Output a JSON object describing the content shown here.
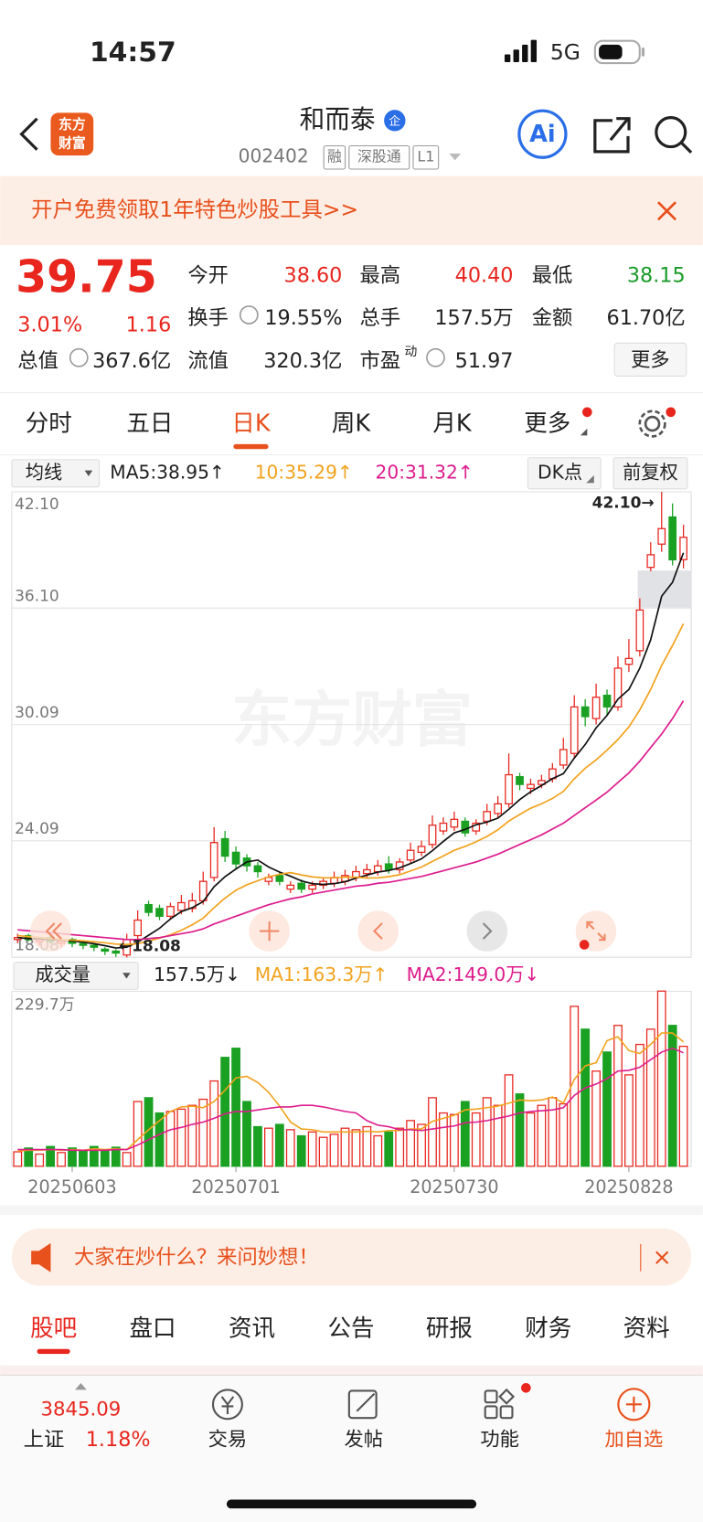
{
  "status": {
    "time": "14:57",
    "network": "5G"
  },
  "header": {
    "logo": [
      "东方",
      "财富"
    ],
    "name": "和而泰",
    "badge": "企",
    "code": "002402",
    "tags": [
      "融",
      "深股通",
      "L1"
    ],
    "ai": "Ai"
  },
  "banner": {
    "text": "开户免费领取1年特色炒股工具>>"
  },
  "quote": {
    "price": "39.75",
    "change_pct": "3.01%",
    "change": "1.16",
    "fields": [
      {
        "label": "今开",
        "value": "38.60"
      },
      {
        "label": "最高",
        "value": "40.40"
      },
      {
        "label": "最低",
        "value": "38.15"
      },
      {
        "label": "换手",
        "value": "19.55%"
      },
      {
        "label": "总手",
        "value": "157.5万"
      },
      {
        "label": "金额",
        "value": "61.70亿"
      },
      {
        "label": "总值",
        "value": "367.6亿"
      },
      {
        "label": "流值",
        "value": "320.3亿"
      },
      {
        "label": "市盈",
        "value": "51.97",
        "sup": "动"
      }
    ],
    "more": "更多"
  },
  "tabs": {
    "items": [
      "分时",
      "五日",
      "日K",
      "周K",
      "月K",
      "更多"
    ],
    "active": 2
  },
  "indicators": {
    "selector": "均线",
    "ma5": "MA5:38.95↑",
    "ma10": "10:35.29↑",
    "ma20": "20:31.32↑",
    "dk": "DK点",
    "adjust": "前复权"
  },
  "chart_data": [
    {
      "type": "candlestick",
      "watermark": "东方财富",
      "high_label": "42.10→",
      "low_label": "←18.08",
      "ylim": [
        18.08,
        42.1
      ],
      "yticks": [
        {
          "value": 42.1,
          "label": "42.10"
        },
        {
          "value": 36.1,
          "label": "36.10"
        },
        30.09,
        24.09,
        18.08
      ],
      "grid": true,
      "open": [
        19.0,
        19.2,
        18.9,
        19.1,
        18.8,
        19.0,
        18.8,
        18.7,
        18.5,
        18.4,
        18.2,
        19.2,
        20.8,
        20.6,
        20.2,
        20.5,
        20.6,
        21.0,
        22.2,
        24.2,
        23.5,
        23.2,
        22.8,
        22.0,
        22.3,
        21.6,
        21.9,
        21.6,
        21.8,
        21.9,
        22.0,
        22.2,
        22.4,
        22.5,
        22.9,
        22.6,
        23.1,
        23.5,
        23.9,
        24.6,
        24.8,
        25.1,
        24.6,
        25.1,
        25.5,
        26.0,
        27.4,
        26.8,
        27.0,
        27.3,
        28.0,
        28.6,
        31.0,
        30.4,
        31.6,
        31.0,
        33.2,
        33.9,
        38.2,
        39.4,
        40.8,
        38.6
      ],
      "high": [
        19.3,
        19.3,
        19.1,
        19.2,
        19.0,
        19.1,
        18.9,
        18.8,
        18.6,
        18.5,
        19.3,
        20.5,
        21.0,
        20.8,
        20.9,
        21.3,
        21.4,
        22.5,
        24.8,
        24.6,
        23.8,
        23.4,
        23.0,
        22.4,
        22.5,
        22.0,
        22.1,
        22.0,
        22.2,
        22.5,
        22.6,
        22.8,
        22.9,
        23.1,
        23.3,
        23.2,
        24.0,
        24.1,
        25.4,
        25.3,
        25.6,
        25.3,
        25.2,
        26.0,
        26.4,
        28.6,
        27.6,
        27.3,
        27.5,
        28.1,
        29.4,
        31.6,
        31.4,
        32.2,
        31.9,
        33.6,
        34.5,
        36.6,
        39.5,
        42.1,
        41.5,
        40.4
      ],
      "low": [
        18.8,
        18.9,
        18.7,
        18.8,
        18.6,
        18.6,
        18.5,
        18.4,
        18.2,
        18.1,
        18.08,
        19.0,
        20.2,
        20.0,
        20.0,
        20.3,
        20.4,
        20.8,
        22.0,
        23.0,
        22.6,
        22.5,
        22.2,
        21.8,
        21.8,
        21.4,
        21.4,
        21.4,
        21.6,
        21.7,
        21.8,
        22.0,
        22.2,
        22.3,
        22.4,
        22.4,
        22.9,
        23.3,
        23.7,
        24.4,
        24.6,
        24.3,
        24.4,
        24.9,
        25.3,
        25.8,
        26.7,
        26.5,
        26.8,
        27.1,
        27.8,
        28.4,
        30.0,
        30.1,
        30.6,
        30.8,
        32.8,
        33.6,
        38.0,
        39.0,
        38.3,
        38.15
      ],
      "close": [
        19.1,
        19.0,
        19.0,
        18.9,
        18.9,
        18.8,
        18.7,
        18.6,
        18.4,
        18.3,
        19.0,
        20.0,
        20.4,
        20.2,
        20.7,
        20.9,
        21.0,
        22.0,
        24.0,
        23.3,
        22.9,
        22.8,
        22.5,
        22.2,
        22.0,
        21.8,
        21.6,
        21.8,
        22.0,
        22.2,
        22.3,
        22.5,
        22.6,
        22.8,
        22.6,
        23.0,
        23.6,
        23.8,
        24.9,
        25.0,
        25.2,
        24.5,
        25.0,
        25.6,
        26.0,
        27.5,
        27.0,
        27.0,
        27.2,
        27.8,
        28.8,
        31.0,
        30.5,
        31.5,
        31.0,
        33.0,
        33.5,
        36.0,
        38.85,
        40.2,
        38.59,
        39.75
      ],
      "lines": [
        {
          "color": "#111111",
          "values": [
            19.1,
            19.05,
            19.03,
            19.0,
            18.98,
            18.92,
            18.86,
            18.78,
            18.68,
            18.56,
            18.6,
            18.86,
            19.22,
            19.58,
            20.06,
            20.44,
            20.64,
            20.96,
            21.72,
            22.24,
            22.64,
            23.0,
            23.1,
            22.74,
            22.48,
            22.26,
            22.02,
            21.88,
            21.84,
            21.88,
            21.98,
            22.16,
            22.32,
            22.48,
            22.56,
            22.7,
            22.92,
            23.16,
            23.58,
            24.06,
            24.5,
            24.68,
            24.92,
            25.06,
            25.26,
            25.72,
            26.22,
            26.62,
            26.94,
            27.3,
            27.56,
            28.36,
            29.06,
            29.92,
            30.56,
            31.4,
            31.9,
            33.0,
            34.47,
            36.71,
            37.43,
            38.95
          ]
        },
        {
          "color": "#f2a21d",
          "values": [
            19.2,
            19.15,
            19.1,
            19.05,
            19.0,
            18.97,
            18.93,
            18.88,
            18.83,
            18.76,
            18.74,
            18.78,
            18.92,
            19.07,
            19.24,
            19.48,
            19.76,
            20.1,
            20.64,
            21.14,
            21.54,
            21.82,
            22.03,
            22.23,
            22.36,
            22.45,
            22.33,
            22.23,
            22.18,
            22.18,
            22.22,
            22.21,
            22.17,
            22.18,
            22.24,
            22.34,
            22.54,
            22.74,
            23.03,
            23.31,
            23.6,
            23.8,
            24.04,
            24.32,
            24.66,
            25.11,
            25.45,
            25.77,
            26.0,
            26.28,
            26.64,
            27.29,
            27.84,
            28.27,
            28.77,
            29.32,
            29.97,
            30.84,
            31.9,
            33.14,
            34.17,
            35.29
          ]
        },
        {
          "color": "#dd1c8c",
          "values": [
            19.5,
            19.45,
            19.4,
            19.35,
            19.3,
            19.25,
            19.2,
            19.15,
            19.1,
            19.05,
            19.0,
            19.0,
            19.05,
            19.1,
            19.2,
            19.3,
            19.4,
            19.55,
            19.8,
            20.0,
            20.2,
            20.4,
            20.6,
            20.8,
            20.95,
            21.1,
            21.2,
            21.35,
            21.45,
            21.55,
            21.65,
            21.75,
            21.8,
            21.9,
            21.95,
            22.05,
            22.15,
            22.25,
            22.4,
            22.55,
            22.7,
            22.85,
            23.0,
            23.2,
            23.4,
            23.65,
            23.9,
            24.15,
            24.4,
            24.7,
            25.0,
            25.4,
            25.8,
            26.2,
            26.6,
            27.1,
            27.6,
            28.2,
            28.9,
            29.6,
            30.4,
            31.32
          ]
        }
      ]
    },
    {
      "type": "bar",
      "title": "成交量",
      "volume_label": "157.5万↓",
      "ma1_label": "MA1:163.3万↑",
      "ma2_label": "MA2:149.0万↓",
      "ylim": [
        0,
        229.7
      ],
      "yticks": [
        {
          "value": 229.7,
          "label": "229.7万"
        }
      ],
      "categories": [
        null,
        null,
        null,
        null,
        null,
        "20250603",
        null,
        null,
        null,
        null,
        null,
        null,
        null,
        null,
        null,
        null,
        null,
        null,
        null,
        null,
        "20250701",
        null,
        null,
        null,
        null,
        null,
        null,
        null,
        null,
        null,
        null,
        null,
        null,
        null,
        null,
        null,
        null,
        null,
        null,
        null,
        "20250730",
        null,
        null,
        null,
        null,
        null,
        null,
        null,
        null,
        null,
        null,
        null,
        null,
        null,
        null,
        null,
        "20250828",
        null,
        null,
        null,
        null,
        null
      ],
      "values": [
        19,
        24,
        16,
        26,
        18,
        24,
        20,
        26,
        22,
        25,
        18,
        85,
        90,
        70,
        72,
        75,
        80,
        88,
        112,
        143,
        155,
        85,
        52,
        50,
        55,
        48,
        40,
        45,
        38,
        42,
        50,
        48,
        52,
        40,
        45,
        50,
        60,
        55,
        90,
        70,
        68,
        85,
        70,
        90,
        80,
        120,
        95,
        70,
        80,
        90,
        82,
        210,
        180,
        125,
        150,
        185,
        120,
        160,
        180,
        230,
        185,
        157.5
      ],
      "lines": [
        {
          "color": "#f2a21d",
          "values": [
            20,
            21,
            21,
            22,
            21,
            22,
            21,
            23,
            22,
            23,
            22,
            35,
            48,
            60,
            72,
            78,
            79,
            77,
            85,
            100,
            116,
            118,
            110,
            97,
            79,
            58,
            49,
            48,
            45,
            45,
            45,
            45,
            46,
            45,
            47,
            47,
            49,
            49,
            59,
            63,
            67,
            74,
            75,
            77,
            79,
            83,
            87,
            86,
            87,
            91,
            83,
            114,
            132,
            136,
            165,
            170,
            152,
            148,
            160,
            175,
            175,
            163.3
          ]
        },
        {
          "color": "#dd1c8c",
          "values": [
            22,
            22,
            22,
            22,
            22,
            21,
            21,
            21,
            21,
            22,
            22,
            28,
            35,
            42,
            48,
            51,
            55,
            58,
            63,
            69,
            72,
            72,
            74,
            76,
            78,
            78,
            80,
            80,
            78,
            75,
            72,
            70,
            60,
            54,
            52,
            48,
            48,
            47,
            49,
            51,
            53,
            57,
            58,
            60,
            63,
            66,
            70,
            72,
            73,
            74,
            77,
            93,
            103,
            108,
            115,
            125,
            126,
            130,
            140,
            150,
            155,
            149.0
          ]
        }
      ]
    }
  ],
  "ad": {
    "text": "大家在炒什么？来问妙想！"
  },
  "subtabs": {
    "items": [
      "股吧",
      "盘口",
      "资讯",
      "公告",
      "研报",
      "财务",
      "资料"
    ],
    "active": 0
  },
  "bottom": {
    "index_value": "3845.09",
    "index_name": "上证",
    "index_pct": "1.18%",
    "items": [
      "交易",
      "发帖",
      "功能",
      "加自选"
    ]
  }
}
